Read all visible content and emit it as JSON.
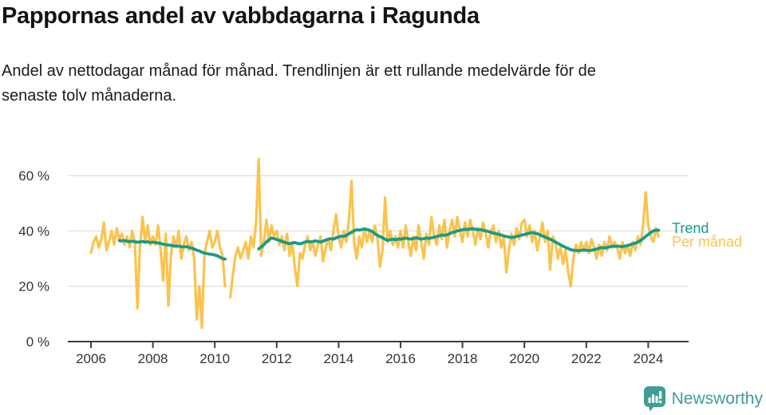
{
  "chart_data": {
    "type": "line",
    "title": "Pappornas andel av vabbdagarna i Ragunda",
    "subtitle": "Andel av nettodagar månad för månad. Trendlinjen är ett rullande medelvärde för de senaste tolv månaderna.",
    "unit": "%",
    "x_unit": "month",
    "start_year": 2006,
    "x_start": "2006-01",
    "x_end": "2024-05",
    "ylim": [
      0,
      68
    ],
    "grid": "horizontal",
    "grid_color": "#dddddd",
    "axis_color": "#3d3d3d",
    "tick_label_color": "#333333",
    "legend_position": "right-end",
    "yticks": [
      {
        "value": 0,
        "label": "0 %"
      },
      {
        "value": 20,
        "label": "20 %"
      },
      {
        "value": 40,
        "label": "40 %"
      },
      {
        "value": 60,
        "label": "60 %"
      }
    ],
    "xticks": [
      {
        "year": 2006,
        "label": "2006"
      },
      {
        "year": 2008,
        "label": "2008"
      },
      {
        "year": 2010,
        "label": "2010"
      },
      {
        "year": 2012,
        "label": "2012"
      },
      {
        "year": 2014,
        "label": "2014"
      },
      {
        "year": 2016,
        "label": "2016"
      },
      {
        "year": 2018,
        "label": "2018"
      },
      {
        "year": 2020,
        "label": "2020"
      },
      {
        "year": 2022,
        "label": "2022"
      },
      {
        "year": 2024,
        "label": "2024"
      }
    ],
    "series": [
      {
        "name": "Trend",
        "color": "#189b8a",
        "z": 2,
        "values": [
          null,
          null,
          null,
          null,
          null,
          null,
          null,
          null,
          null,
          null,
          null,
          36.5,
          36.4,
          36.5,
          36.3,
          36.1,
          36.3,
          36.1,
          35.9,
          36.0,
          36.2,
          35.9,
          36.1,
          35.8,
          35.9,
          35.8,
          35.6,
          35.5,
          35.2,
          35.0,
          34.9,
          34.8,
          34.6,
          34.5,
          34.5,
          34.3,
          34.2,
          34.3,
          34.0,
          33.8,
          33.5,
          33.0,
          32.8,
          32.3,
          32.0,
          31.8,
          31.6,
          31.5,
          31.3,
          31.0,
          30.5,
          30.0,
          29.8,
          null,
          null,
          null,
          null,
          null,
          null,
          null,
          null,
          null,
          null,
          null,
          null,
          33.5,
          34.2,
          35.0,
          36.0,
          36.8,
          37.4,
          37.2,
          36.9,
          36.6,
          36.2,
          35.9,
          35.6,
          35.4,
          35.6,
          35.8,
          35.5,
          35.3,
          35.6,
          36.0,
          36.2,
          36.0,
          36.2,
          36.4,
          36.2,
          36.0,
          36.3,
          36.7,
          37.0,
          37.2,
          37.0,
          37.5,
          37.8,
          38.1,
          38.0,
          38.4,
          39.0,
          39.5,
          40.1,
          40.4,
          40.3,
          40.5,
          40.7,
          40.5,
          40.2,
          39.8,
          39.0,
          38.4,
          38.0,
          37.5,
          37.0,
          36.6,
          36.8,
          37.0,
          36.8,
          37.1,
          37.0,
          37.2,
          37.4,
          37.2,
          37.0,
          37.3,
          37.5,
          37.3,
          37.0,
          37.2,
          37.4,
          37.3,
          37.5,
          37.7,
          38.0,
          38.2,
          38.5,
          38.4,
          38.6,
          39.0,
          39.4,
          39.7,
          40.0,
          40.2,
          40.4,
          40.6,
          40.5,
          40.7,
          40.8,
          40.6,
          40.4,
          40.5,
          40.2,
          40.0,
          39.8,
          39.5,
          39.2,
          39.0,
          38.8,
          38.5,
          38.2,
          38.0,
          37.8,
          37.6,
          37.8,
          38.0,
          38.2,
          38.5,
          38.7,
          39.0,
          39.2,
          39.4,
          39.2,
          39.0,
          38.6,
          38.2,
          37.8,
          37.4,
          37.0,
          36.5,
          36.0,
          35.5,
          35.0,
          34.5,
          34.0,
          33.6,
          33.2,
          33.0,
          32.9,
          32.8,
          33.0,
          33.1,
          33.0,
          32.9,
          33.0,
          33.2,
          33.5,
          33.7,
          34.0,
          33.8,
          34.0,
          34.2,
          34.4,
          34.4,
          34.5,
          34.4,
          34.3,
          34.5,
          34.7,
          35.0,
          35.3,
          35.6,
          36.0,
          36.5,
          37.2,
          38.0,
          38.7,
          39.4,
          40.0,
          40.3,
          40.2
        ]
      },
      {
        "name": "Per månad",
        "color": "#fbc34d",
        "z": 1,
        "values": [
          32,
          36,
          38,
          34,
          37,
          43,
          33,
          36,
          40,
          35,
          41,
          37,
          39,
          35,
          38,
          34,
          40,
          36,
          12,
          34,
          45,
          36,
          42,
          35,
          38,
          35,
          42,
          33,
          22,
          39,
          13,
          31,
          38,
          34,
          40,
          30,
          35,
          38,
          33,
          36,
          30,
          8,
          20,
          5,
          32,
          36,
          40,
          34,
          36,
          40,
          34,
          31,
          20,
          null,
          16,
          24,
          31,
          34,
          30,
          33,
          36,
          30,
          38,
          34,
          43,
          66,
          31,
          36,
          44,
          36,
          42,
          38,
          40,
          35,
          38,
          33,
          39,
          31,
          36,
          27,
          20,
          32,
          30,
          35,
          38,
          33,
          36,
          31,
          35,
          38,
          29,
          34,
          37,
          33,
          40,
          46,
          38,
          34,
          40,
          36,
          44,
          58,
          36,
          30,
          38,
          34,
          41,
          36,
          40,
          36,
          42,
          38,
          27,
          33,
          52,
          36,
          40,
          35,
          38,
          34,
          40,
          34,
          42,
          36,
          31,
          38,
          33,
          42,
          36,
          30,
          39,
          35,
          45,
          38,
          35,
          42,
          37,
          44,
          34,
          40,
          44,
          38,
          45,
          40,
          36,
          43,
          38,
          44,
          40,
          35,
          41,
          37,
          43,
          39,
          34,
          40,
          42,
          36,
          40,
          34,
          38,
          25,
          33,
          39,
          35,
          41,
          37,
          43,
          44,
          38,
          42,
          36,
          40,
          33,
          38,
          43,
          36,
          40,
          26,
          38,
          36,
          30,
          34,
          28,
          33,
          25,
          20,
          30,
          35,
          32,
          36,
          33,
          36,
          32,
          37,
          34,
          30,
          35,
          31,
          36,
          33,
          38,
          34,
          36,
          34,
          30,
          36,
          32,
          35,
          31,
          36,
          33,
          38,
          35,
          42,
          54,
          42,
          38,
          36,
          41,
          38
        ]
      }
    ]
  },
  "branding": {
    "logo_text": "Newsworthy",
    "logo_color": "#3e9e96",
    "logo_icon": "bar-chart-speech-bubble-icon"
  }
}
